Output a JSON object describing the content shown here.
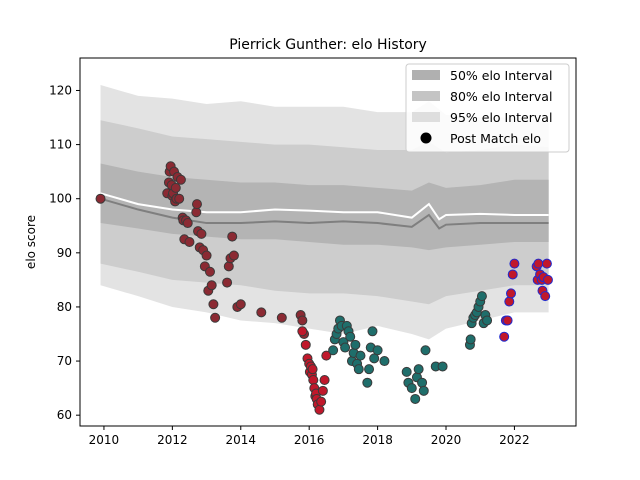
{
  "chart_data": {
    "type": "scatter",
    "title": "Pierrick Gunther: elo History",
    "xlabel": "",
    "ylabel": "elo score",
    "xlim": [
      2009.3,
      2023.8
    ],
    "ylim": [
      58,
      126
    ],
    "x_ticks": [
      2010,
      2012,
      2014,
      2016,
      2018,
      2020,
      2022
    ],
    "x_tick_labels": [
      "2010",
      "2012",
      "2014",
      "2016",
      "2018",
      "2020",
      "2022"
    ],
    "y_ticks": [
      60,
      70,
      80,
      90,
      100,
      110,
      120
    ],
    "y_tick_labels": [
      "60",
      "70",
      "80",
      "90",
      "100",
      "110",
      "120"
    ],
    "grid": false,
    "legend_position": "top-right",
    "legend": [
      {
        "label": "50% elo Interval",
        "kind": "band",
        "color": "#b0b0b0"
      },
      {
        "label": "80% elo Interval",
        "kind": "band",
        "color": "#c4c4c4"
      },
      {
        "label": "95% elo Interval",
        "kind": "band",
        "color": "#dedede"
      },
      {
        "label": "Post Match elo",
        "kind": "marker",
        "color": "#000000"
      }
    ],
    "bands": {
      "x": [
        2009.9,
        2011,
        2012,
        2013,
        2014,
        2015,
        2016,
        2017,
        2018,
        2019,
        2019.5,
        2020,
        2021,
        2022,
        2023
      ],
      "band95": {
        "lower": [
          84,
          82,
          80,
          79,
          77.5,
          77,
          76,
          75,
          76.5,
          75,
          74,
          76,
          77.5,
          79,
          79
        ],
        "upper": [
          121,
          119,
          118.5,
          117.5,
          118,
          117,
          117,
          117,
          116,
          116,
          118,
          115.5,
          115,
          115,
          114
        ]
      },
      "band80": {
        "lower": [
          88,
          86.5,
          85,
          84.5,
          84,
          83,
          82.5,
          82.5,
          82,
          81,
          80.5,
          82,
          83,
          84,
          84
        ]
      },
      "band50": {
        "lower": [
          95.5,
          94.5,
          93.5,
          93,
          92.5,
          92.5,
          92,
          91.5,
          91.5,
          91,
          90.5,
          91,
          91.5,
          92,
          92
        ],
        "upper": [
          106.5,
          105,
          104,
          103.5,
          103,
          103,
          102.5,
          102.5,
          102,
          101.5,
          103,
          102,
          102.5,
          103.5,
          103.5
        ]
      },
      "band80_upper": [
        114.5,
        113,
        111.5,
        111,
        110.5,
        110,
        110,
        109.5,
        109,
        109,
        110.5,
        108.5,
        109,
        110,
        109.5
      ]
    },
    "mean_line": {
      "x": [
        2009.9,
        2011,
        2012,
        2013,
        2014,
        2015,
        2016,
        2017,
        2018,
        2019,
        2019.5,
        2019.8,
        2020,
        2021,
        2022,
        2023
      ],
      "y": [
        100,
        98,
        96.5,
        95.5,
        95.5,
        95.8,
        95.5,
        95.8,
        95.5,
        94.8,
        97,
        94.5,
        95.2,
        95.5,
        95.5,
        95.5
      ]
    },
    "white_line": {
      "x": [
        2009.9,
        2011,
        2012,
        2013,
        2014,
        2015,
        2016,
        2017,
        2018,
        2019,
        2019.5,
        2019.8,
        2020,
        2021,
        2022,
        2023
      ],
      "y": [
        101,
        99,
        98,
        97.5,
        97.5,
        98,
        97.8,
        97.5,
        97.5,
        96.5,
        99,
        96.2,
        97,
        97.2,
        97,
        97
      ]
    },
    "series": [
      {
        "fill": "#8b2a33",
        "edge": "#3a3a3a",
        "x": [
          2009.9,
          2011.85,
          2011.9,
          2011.92,
          2011.95,
          2011.98,
          2012.0,
          2012.02,
          2012.05,
          2012.08,
          2012.1,
          2012.12,
          2012.15,
          2012.2,
          2012.25,
          2012.3,
          2012.32,
          2012.35,
          2012.4,
          2012.45,
          2012.5,
          2012.7,
          2012.72,
          2012.75,
          2012.8,
          2012.85,
          2012.9,
          2012.95,
          2013.0,
          2013.05,
          2013.1,
          2013.15,
          2013.2,
          2013.25,
          2013.6,
          2013.65,
          2013.7,
          2013.75,
          2013.8,
          2013.9,
          2014.0
        ],
        "y": [
          100,
          101,
          103,
          105,
          106,
          102.5,
          100.5,
          101,
          105,
          99.5,
          102,
          100,
          104,
          100,
          103.5,
          96.5,
          96,
          92.5,
          96,
          95.5,
          92,
          97.5,
          99,
          94,
          91,
          93.5,
          90.5,
          87.5,
          89.5,
          83,
          86.5,
          84,
          80.5,
          78,
          84.5,
          87.5,
          89,
          93,
          89.5,
          80,
          80.5
        ]
      },
      {
        "fill": "#8b2a33",
        "edge": "#3a3a3a",
        "x": [
          2014.6,
          2015.2,
          2015.75,
          2015.8,
          2015.85
        ],
        "y": [
          79,
          78,
          78.5,
          77.5,
          75
        ]
      },
      {
        "fill": "#c0182b",
        "edge": "#3a3a3a",
        "x": [
          2015.8,
          2015.9,
          2015.95,
          2016.0,
          2016.02,
          2016.05,
          2016.08,
          2016.1,
          2016.12,
          2016.15,
          2016.18,
          2016.2,
          2016.22,
          2016.25,
          2016.3,
          2016.35,
          2016.4,
          2016.45,
          2016.5
        ],
        "y": [
          75.5,
          73,
          70.5,
          69.5,
          68,
          69,
          67.5,
          68.5,
          66.5,
          65,
          63.5,
          64,
          63,
          62,
          61,
          62.5,
          64.5,
          66.5,
          71
        ]
      },
      {
        "fill": "#1f6e6b",
        "edge": "#3a3a3a",
        "x": [
          2016.7,
          2016.75,
          2016.8,
          2016.85,
          2016.9,
          2016.95,
          2017.0,
          2017.05,
          2017.1,
          2017.15,
          2017.2,
          2017.25,
          2017.3,
          2017.35,
          2017.4,
          2017.45,
          2017.5,
          2017.7,
          2017.75,
          2017.8,
          2017.85,
          2017.9,
          2018.0,
          2018.2,
          2018.85,
          2018.9,
          2019.0,
          2019.1,
          2019.15,
          2019.2,
          2019.3,
          2019.35,
          2019.4,
          2019.7,
          2019.9
        ],
        "y": [
          72,
          74,
          75,
          76,
          77.5,
          76.5,
          73.5,
          72.5,
          76.5,
          75.5,
          74.5,
          70,
          71.5,
          73,
          69.5,
          68.5,
          71,
          66,
          68.5,
          72.5,
          75.5,
          70.5,
          72,
          70,
          68,
          66,
          65,
          63,
          67,
          68.5,
          66,
          64.5,
          72,
          69,
          69
        ]
      },
      {
        "fill": "#1f6e6b",
        "edge": "#3a3a3a",
        "x": [
          2020.7,
          2020.72,
          2020.75,
          2020.8,
          2020.85,
          2020.9,
          2020.95,
          2021.0,
          2021.05,
          2021.1,
          2021.15,
          2021.2
        ],
        "y": [
          73,
          74,
          77,
          78,
          78.5,
          79,
          80,
          81,
          82,
          77,
          78.5,
          77.5
        ]
      },
      {
        "fill": "#c0182b",
        "edge": "#1e2bd0",
        "x": [
          2021.7,
          2021.75,
          2021.8,
          2021.85,
          2021.9,
          2021.95,
          2022.0
        ],
        "y": [
          74.5,
          77.5,
          77.5,
          81,
          82.5,
          86,
          88
        ]
      },
      {
        "fill": "#c0182b",
        "edge": "#1e2bd0",
        "x": [
          2022.65,
          2022.68,
          2022.7,
          2022.75,
          2022.8,
          2022.82,
          2022.85,
          2022.9,
          2022.95,
          2022.98
        ],
        "y": [
          87.5,
          85,
          88,
          86,
          85,
          83,
          85.5,
          82,
          88,
          85
        ]
      }
    ]
  }
}
